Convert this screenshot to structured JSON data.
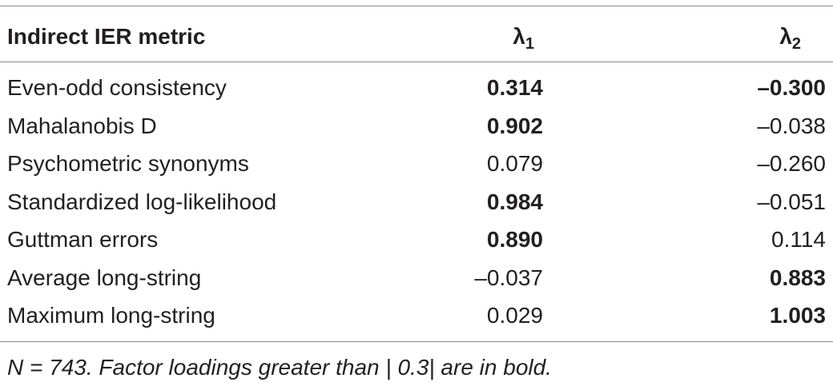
{
  "table": {
    "headers": {
      "metric": "Indirect IER metric",
      "lambda1": "λ",
      "lambda1_sub": "1",
      "lambda2": "λ",
      "lambda2_sub": "2"
    },
    "rows": [
      {
        "metric": "Even-odd consistency",
        "l1": "0.314",
        "l1_bold": true,
        "l2": "–0.300",
        "l2_bold": true
      },
      {
        "metric": "Mahalanobis D",
        "l1": "0.902",
        "l1_bold": true,
        "l2": "–0.038",
        "l2_bold": false
      },
      {
        "metric": "Psychometric synonyms",
        "l1": "0.079",
        "l1_bold": false,
        "l2": "–0.260",
        "l2_bold": false
      },
      {
        "metric": "Standardized log-likelihood",
        "l1": "0.984",
        "l1_bold": true,
        "l2": "–0.051",
        "l2_bold": false
      },
      {
        "metric": "Guttman errors",
        "l1": "0.890",
        "l1_bold": true,
        "l2": "0.114",
        "l2_bold": false
      },
      {
        "metric": "Average long-string",
        "l1": "–0.037",
        "l1_bold": false,
        "l2": "0.883",
        "l2_bold": true
      },
      {
        "metric": "Maximum long-string",
        "l1": "0.029",
        "l1_bold": false,
        "l2": "1.003",
        "l2_bold": true
      }
    ],
    "note": "N = 743. Factor loadings greater than | 0.3|  are in bold."
  }
}
